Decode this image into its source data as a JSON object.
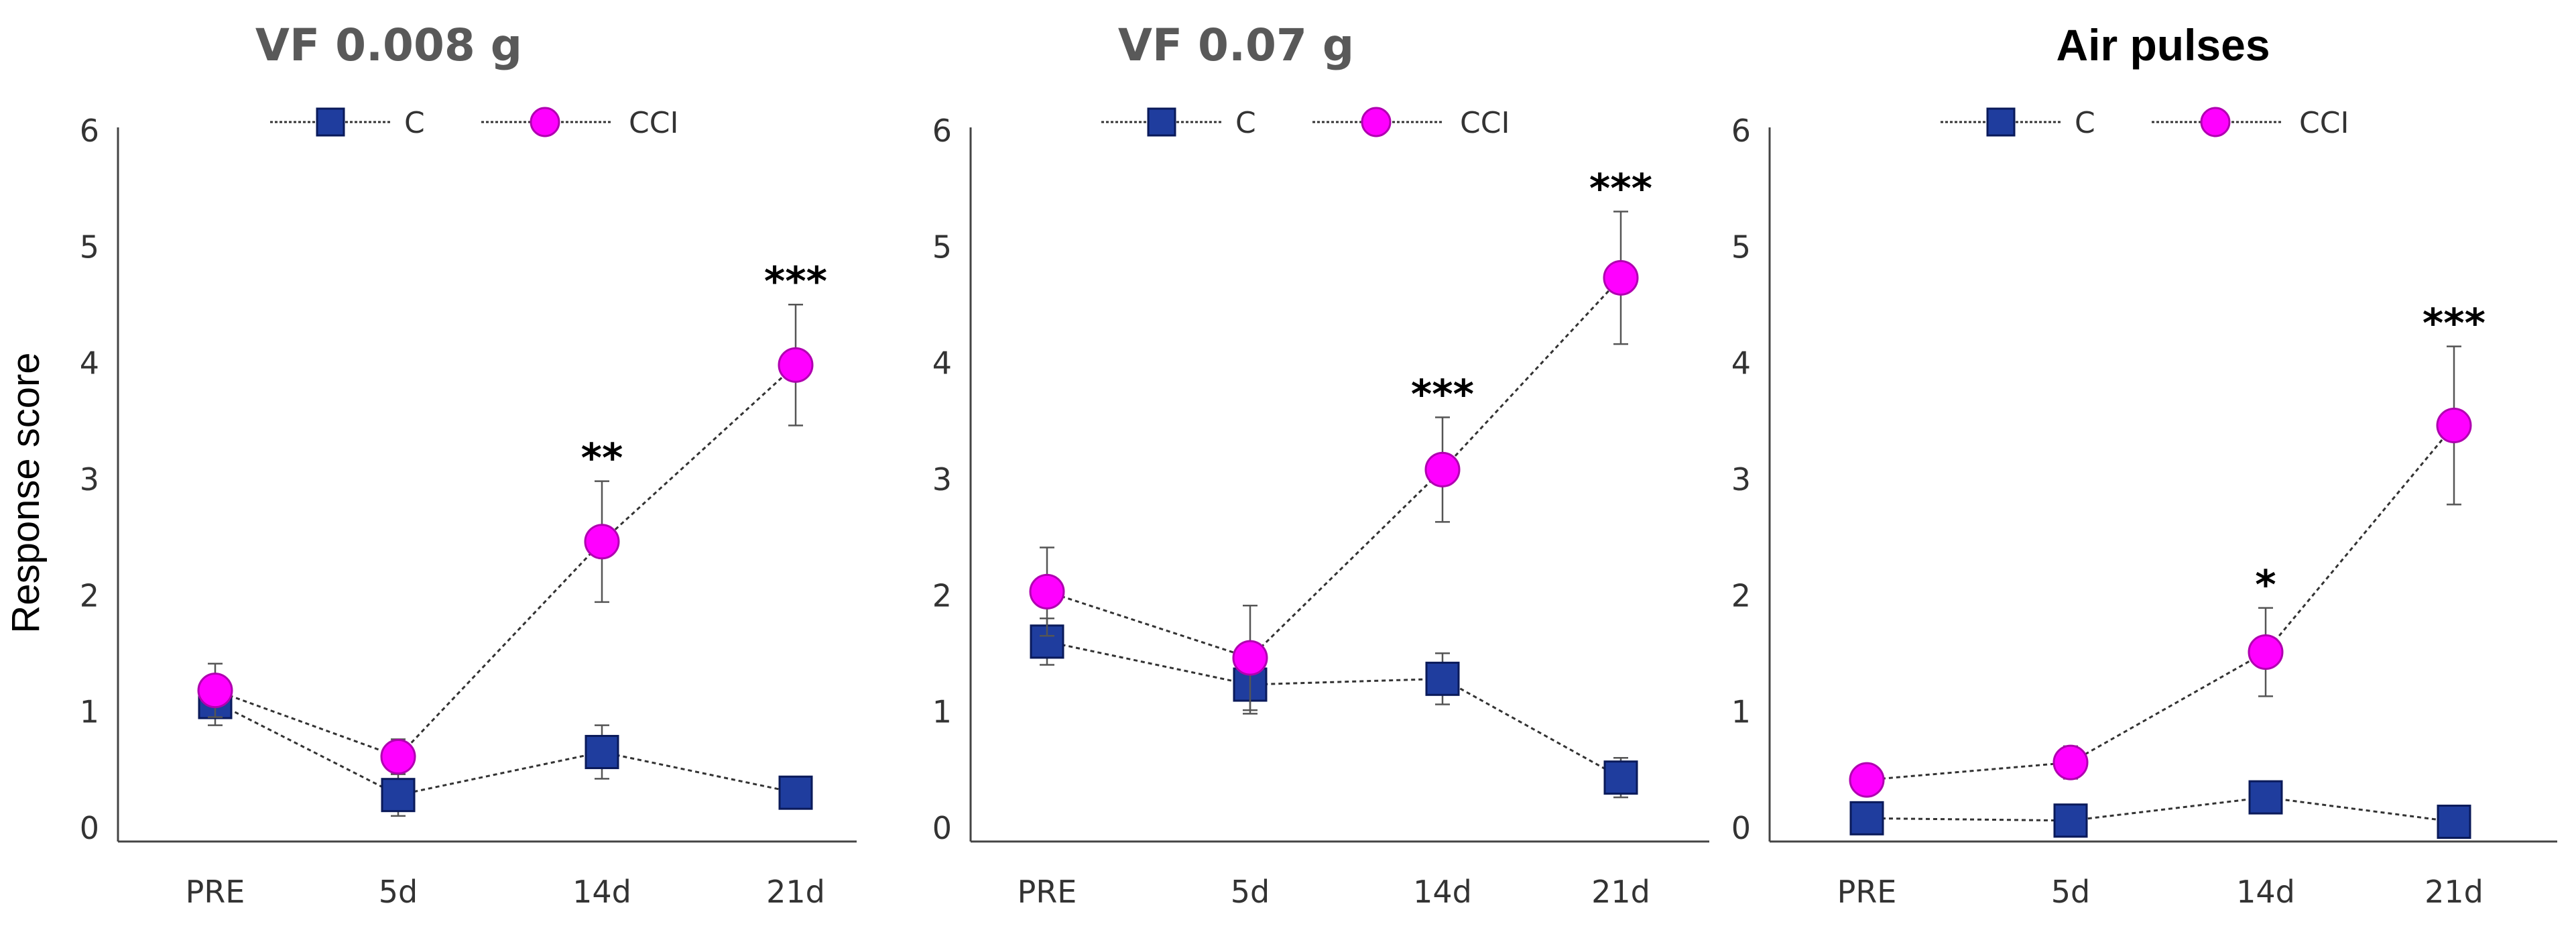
{
  "figure": {
    "y_axis_label": "Response score"
  },
  "chart_data": [
    {
      "type": "line",
      "title": "VF 0.008 g",
      "ylabel": "Response score",
      "ylim": [
        0,
        6
      ],
      "yticks": [
        "0",
        "1",
        "2",
        "3",
        "4",
        "5",
        "6"
      ],
      "categories": [
        "PRE",
        "5d",
        "14d",
        "21d"
      ],
      "legend": "top-center",
      "series": [
        {
          "name": "C",
          "marker": "square",
          "color": "#1f3d9e",
          "values": [
            1.2,
            0.4,
            0.77,
            0.42
          ],
          "errors": [
            0.2,
            0.18,
            0.23,
            0.13
          ]
        },
        {
          "name": "CCI",
          "marker": "circle",
          "color": "#ff00ff",
          "values": [
            1.3,
            0.73,
            2.58,
            4.1
          ],
          "errors": [
            0.23,
            0.15,
            0.52,
            0.52
          ]
        }
      ],
      "annotations": [
        {
          "category": "14d",
          "text": "**"
        },
        {
          "category": "21d",
          "text": "***"
        }
      ]
    },
    {
      "type": "line",
      "title": "VF 0.07 g",
      "ylabel": "",
      "ylim": [
        0,
        6
      ],
      "yticks": [
        "0",
        "1",
        "2",
        "3",
        "4",
        "5",
        "6"
      ],
      "categories": [
        "PRE",
        "5d",
        "14d",
        "21d"
      ],
      "legend": "top-center",
      "series": [
        {
          "name": "C",
          "marker": "square",
          "color": "#1f3d9e",
          "values": [
            1.72,
            1.35,
            1.4,
            0.55
          ],
          "errors": [
            0.2,
            0.25,
            0.22,
            0.17
          ]
        },
        {
          "name": "CCI",
          "marker": "circle",
          "color": "#ff00ff",
          "values": [
            2.15,
            1.58,
            3.2,
            4.85
          ],
          "errors": [
            0.38,
            0.45,
            0.45,
            0.57
          ]
        }
      ],
      "annotations": [
        {
          "category": "14d",
          "text": "***"
        },
        {
          "category": "21d",
          "text": "***"
        }
      ]
    },
    {
      "type": "line",
      "title": "Air pulses",
      "ylabel": "",
      "ylim": [
        0,
        6
      ],
      "yticks": [
        "0",
        "1",
        "2",
        "3",
        "4",
        "5",
        "6"
      ],
      "categories": [
        "PRE",
        "5d",
        "14d",
        "21d"
      ],
      "legend": "top-center",
      "series": [
        {
          "name": "C",
          "marker": "square",
          "color": "#1f3d9e",
          "values": [
            0.2,
            0.18,
            0.38,
            0.17
          ],
          "errors": [
            0.03,
            0.05,
            0.08,
            0.03
          ]
        },
        {
          "name": "CCI",
          "marker": "circle",
          "color": "#ff00ff",
          "values": [
            0.53,
            0.68,
            1.63,
            3.58
          ],
          "errors": [
            0.04,
            0.14,
            0.38,
            0.68
          ]
        }
      ],
      "annotations": [
        {
          "category": "14d",
          "text": "*"
        },
        {
          "category": "21d",
          "text": "***"
        }
      ]
    }
  ]
}
